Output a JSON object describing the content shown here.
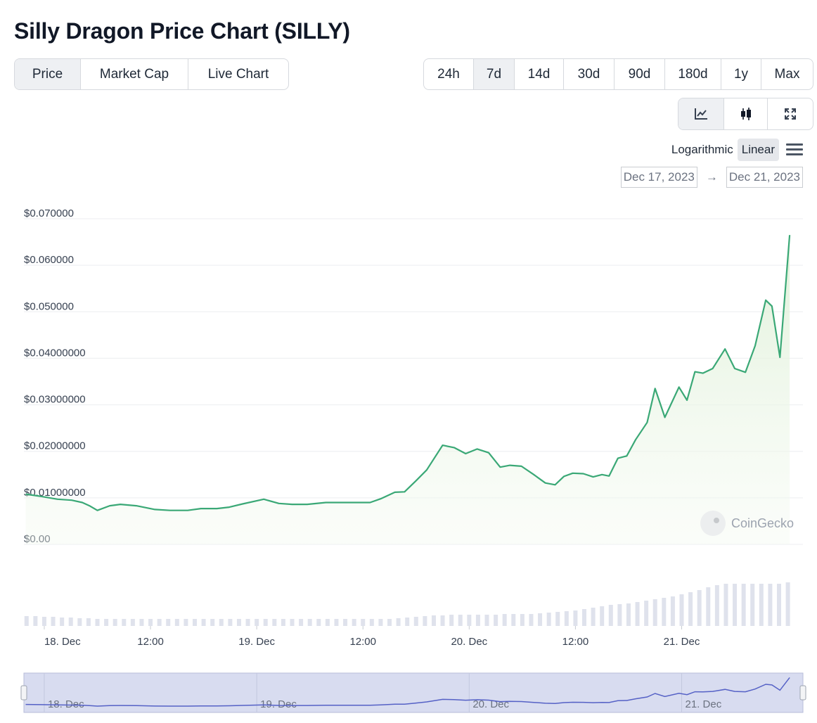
{
  "title": "Silly Dragon Price Chart (SILLY)",
  "metric_tabs": [
    "Price",
    "Market Cap",
    "Live Chart"
  ],
  "metric_active": "Price",
  "range_tabs": [
    "24h",
    "7d",
    "14d",
    "30d",
    "90d",
    "180d",
    "1y",
    "Max"
  ],
  "range_active": "7d",
  "chart_type_icons": [
    "line-chart-icon",
    "candlestick-icon",
    "expand-icon"
  ],
  "scale": {
    "logarithmic": "Logarithmic",
    "linear": "Linear",
    "active": "Linear"
  },
  "date_range": {
    "from": "Dec 17, 2023",
    "arrow": "→",
    "to": "Dec 21, 2023"
  },
  "watermarks": {
    "brand": "CoinGecko"
  },
  "colors": {
    "line": "#3aa876",
    "area": "#e8f5e3",
    "volume": "#dfe2ec",
    "navigator_fill": "#d8dcf0",
    "navigator_line": "#5561c6"
  },
  "chart_data": {
    "type": "line",
    "title": "",
    "ylabel": "",
    "y_ticks": [
      {
        "value": 0.07,
        "label": "$0.070000"
      },
      {
        "value": 0.06,
        "label": "$0.060000"
      },
      {
        "value": 0.05,
        "label": "$0.050000"
      },
      {
        "value": 0.04,
        "label": "$0.04000000"
      },
      {
        "value": 0.03,
        "label": "$0.03000000"
      },
      {
        "value": 0.02,
        "label": "$0.02000000"
      },
      {
        "value": 0.01,
        "label": "$0.01000000"
      },
      {
        "value": 0.0,
        "label": "$0.00"
      }
    ],
    "x_ticks": [
      {
        "t": 0,
        "label": "18. Dec"
      },
      {
        "t": 12,
        "label": "12:00"
      },
      {
        "t": 24,
        "label": "19. Dec"
      },
      {
        "t": 36,
        "label": "12:00"
      },
      {
        "t": 48,
        "label": "20. Dec"
      },
      {
        "t": 60,
        "label": "12:00"
      },
      {
        "t": 72,
        "label": "21. Dec"
      }
    ],
    "navigator_ticks": [
      {
        "t": 0,
        "label": "18. Dec"
      },
      {
        "t": 24,
        "label": "19. Dec"
      },
      {
        "t": 48,
        "label": "20. Dec"
      },
      {
        "t": 72,
        "label": "21. Dec"
      }
    ],
    "xlim": [
      -2.3,
      85.7
    ],
    "ylim": [
      0,
      0.07
    ],
    "grid": true,
    "series": [
      {
        "x": [
          -2.1,
          -0.3,
          1.5,
          3.1,
          4.3,
          5.1,
          6.0,
          7.4,
          8.6,
          10.4,
          12.5,
          14.2,
          16.2,
          17.7,
          19.5,
          20.9,
          22.4,
          24.8,
          26.5,
          28.0,
          29.7,
          31.8,
          33.2,
          35.0,
          36.8,
          38.0,
          39.6,
          40.7,
          42.0,
          43.2,
          45.0,
          46.3,
          47.6,
          48.9,
          50.2,
          51.5,
          52.6,
          53.9,
          55.3,
          56.6,
          57.7,
          58.7,
          59.7,
          60.9,
          62.0,
          63.0,
          63.8,
          64.8,
          65.8,
          66.8,
          68.1,
          69.0,
          70.1,
          71.7,
          72.6,
          73.5,
          74.4,
          75.5,
          76.9,
          78.0,
          79.2,
          80.3,
          81.5,
          82.2,
          83.1,
          84.2
        ],
        "y": [
          0.0108,
          0.0103,
          0.0097,
          0.0095,
          0.009,
          0.0083,
          0.0073,
          0.0083,
          0.0086,
          0.0083,
          0.0075,
          0.0073,
          0.0073,
          0.0077,
          0.0077,
          0.008,
          0.0087,
          0.0097,
          0.0088,
          0.0086,
          0.0086,
          0.009,
          0.009,
          0.009,
          0.009,
          0.0098,
          0.0112,
          0.0113,
          0.0137,
          0.016,
          0.0213,
          0.0208,
          0.0195,
          0.0205,
          0.0197,
          0.0166,
          0.017,
          0.0168,
          0.015,
          0.0132,
          0.0128,
          0.0146,
          0.0153,
          0.0152,
          0.0145,
          0.015,
          0.0147,
          0.0185,
          0.019,
          0.0225,
          0.0262,
          0.0335,
          0.0273,
          0.0338,
          0.031,
          0.0371,
          0.0368,
          0.0378,
          0.042,
          0.0378,
          0.037,
          0.0427,
          0.0525,
          0.0512,
          0.0402,
          0.0665
        ]
      }
    ],
    "volume": {
      "x": [
        -2.0,
        -1.0,
        0.0,
        1.0,
        2.0,
        3.0,
        4.0,
        5.0,
        6.0,
        7.0,
        8.0,
        9.0,
        10.0,
        11.0,
        12.0,
        13.0,
        14.0,
        15.0,
        16.0,
        17.0,
        18.0,
        19.0,
        20.0,
        21.0,
        22.0,
        23.0,
        24.0,
        25.0,
        26.0,
        27.0,
        28.0,
        29.0,
        30.0,
        31.0,
        32.0,
        33.0,
        34.0,
        35.0,
        36.0,
        37.0,
        38.0,
        39.0,
        40.0,
        41.0,
        42.0,
        43.0,
        44.0,
        45.0,
        46.0,
        47.0,
        48.0,
        49.0,
        50.0,
        51.0,
        52.0,
        53.0,
        54.0,
        55.0,
        56.0,
        57.0,
        58.0,
        59.0,
        60.0,
        61.0,
        62.0,
        63.0,
        64.0,
        65.0,
        66.0,
        67.0,
        68.0,
        69.0,
        70.0,
        71.0,
        72.0,
        73.0,
        74.0,
        75.0,
        76.0,
        77.0,
        78.0,
        79.0,
        80.0,
        81.0,
        82.0,
        83.0,
        84.0
      ],
      "values": [
        14,
        14,
        13,
        13,
        12,
        12,
        11,
        11,
        10,
        10,
        10,
        10,
        10,
        10,
        10,
        10,
        10,
        10,
        10,
        10,
        10,
        10,
        10,
        10,
        10,
        10,
        10,
        10,
        10,
        10,
        10,
        10,
        10,
        10,
        10,
        10,
        10,
        10,
        10,
        10,
        10,
        10,
        11,
        12,
        13,
        14,
        15,
        15,
        16,
        16,
        16,
        16,
        16,
        16,
        17,
        17,
        17,
        17,
        18,
        19,
        20,
        21,
        22,
        24,
        26,
        28,
        30,
        31,
        32,
        34,
        36,
        38,
        40,
        42,
        45,
        48,
        51,
        55,
        58,
        60,
        60,
        60,
        60,
        60,
        60,
        60,
        62
      ]
    }
  }
}
